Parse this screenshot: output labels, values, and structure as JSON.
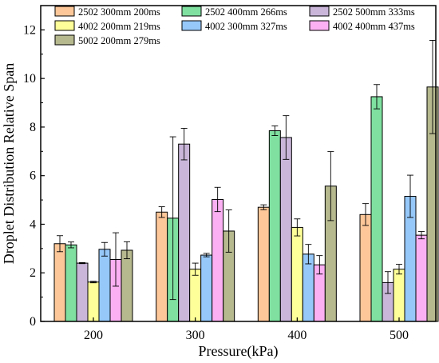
{
  "chart_data": {
    "type": "bar",
    "xlabel": "Pressure(kPa)",
    "ylabel": "Droplet Distribution Relative Span",
    "categories": [
      "200",
      "300",
      "400",
      "500"
    ],
    "ylim": [
      0,
      13
    ],
    "yticks": [
      0,
      2,
      4,
      6,
      8,
      10,
      12
    ],
    "grid": false,
    "legend_position": "top, inside plot",
    "series": [
      {
        "name": "2502 300mm 200ms",
        "color": "#FDC799",
        "values": [
          3.2,
          4.5,
          4.7,
          4.4
        ],
        "errors": [
          0.33,
          0.22,
          0.1,
          0.45
        ]
      },
      {
        "name": "2502 400mm 266ms",
        "color": "#7FE0A0",
        "values": [
          3.15,
          4.25,
          7.85,
          9.25
        ],
        "errors": [
          0.12,
          3.35,
          0.2,
          0.5
        ]
      },
      {
        "name": "2502 500mm 333ms",
        "color": "#C9B6D9",
        "values": [
          2.4,
          7.3,
          7.57,
          1.6
        ],
        "errors": [
          0.02,
          0.65,
          0.9,
          0.45
        ]
      },
      {
        "name": "4002 200mm 219ms",
        "color": "#FFFF99",
        "values": [
          1.62,
          2.15,
          3.87,
          2.15
        ],
        "errors": [
          0.03,
          0.25,
          0.35,
          0.2
        ]
      },
      {
        "name": "4002 300mm 327ms",
        "color": "#96C8FA",
        "values": [
          2.97,
          2.73,
          2.77,
          5.15
        ],
        "errors": [
          0.28,
          0.07,
          0.4,
          0.87
        ]
      },
      {
        "name": "4002 400mm 437ms",
        "color": "#FAB0F2",
        "values": [
          2.55,
          5.02,
          2.33,
          3.55
        ],
        "errors": [
          1.1,
          0.5,
          0.38,
          0.15
        ]
      },
      {
        "name": "5002 200mm 279ms",
        "color": "#B6B98E",
        "values": [
          2.93,
          3.72,
          5.57,
          9.65
        ],
        "errors": [
          0.35,
          0.87,
          1.42,
          1.92
        ]
      }
    ]
  }
}
